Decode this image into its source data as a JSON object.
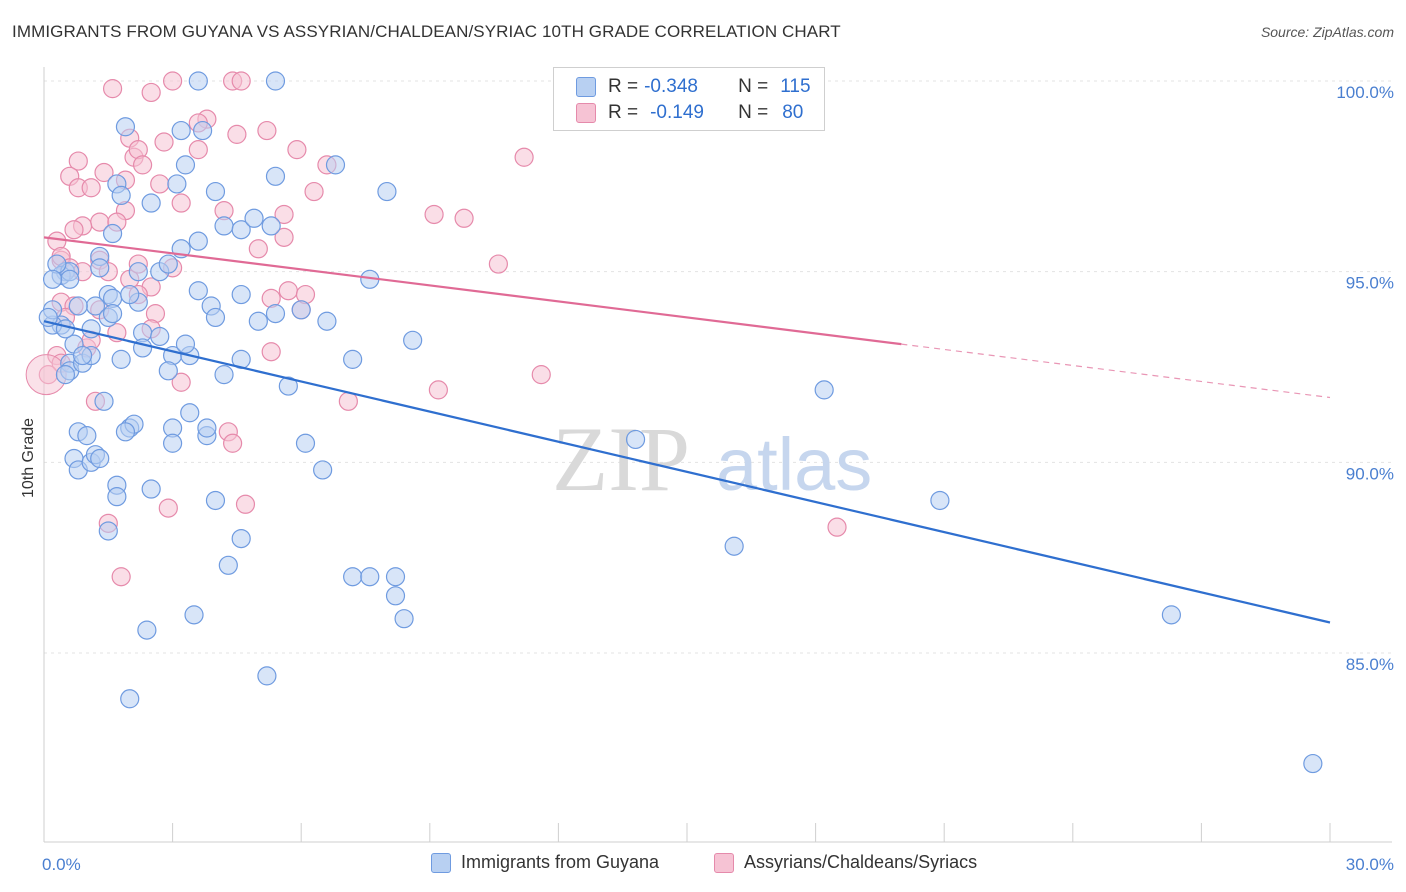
{
  "title": "IMMIGRANTS FROM GUYANA VS ASSYRIAN/CHALDEAN/SYRIAC 10TH GRADE CORRELATION CHART",
  "source": "Source: ZipAtlas.com",
  "watermark": {
    "zip": "ZIP",
    "atlas": "atlas"
  },
  "legend": {
    "rows": [
      {
        "r_label": "R =",
        "r_value": "-0.348",
        "n_label": "N =",
        "n_value": "115"
      },
      {
        "r_label": "R =",
        "r_value": "-0.149",
        "n_label": "N =",
        "n_value": "80"
      }
    ]
  },
  "colors": {
    "blue": "#2f6fcf",
    "blue_fill": "#b8d0f2",
    "pink": "#e06a95",
    "pink_fill": "#f6c3d4",
    "tick_text": "#4a7fd0",
    "grid": "#e3e3e3"
  },
  "chart_data": {
    "type": "scatter",
    "ylabel": "10th Grade",
    "xlim": [
      0,
      30
    ],
    "ylim": [
      80.0,
      101.0
    ],
    "x_tick_labels": [
      "0.0%",
      "30.0%"
    ],
    "y_ticks": [
      {
        "value": 100,
        "label": "100.0%"
      },
      {
        "value": 95,
        "label": "95.0%"
      },
      {
        "value": 90,
        "label": "90.0%"
      },
      {
        "value": 85,
        "label": "85.0%"
      }
    ],
    "grid": true,
    "series": [
      {
        "name": "Immigrants from Guyana",
        "color": "blue",
        "trend": {
          "x0": 0.0,
          "y0": 93.7,
          "x1": 30.0,
          "y1": 85.8
        },
        "points": [
          [
            3.6,
            100
          ],
          [
            5.4,
            100
          ],
          [
            1.9,
            98.8
          ],
          [
            3.2,
            98.7
          ],
          [
            3.7,
            98.7
          ],
          [
            3.3,
            97.8
          ],
          [
            5.4,
            97.5
          ],
          [
            6.8,
            97.8
          ],
          [
            0.5,
            95
          ],
          [
            0.4,
            94.9
          ],
          [
            0.4,
            93.6
          ],
          [
            0.2,
            93.6
          ],
          [
            0.2,
            94
          ],
          [
            0.1,
            93.8
          ],
          [
            0.6,
            95
          ],
          [
            0.6,
            94.8
          ],
          [
            1.3,
            95.4
          ],
          [
            1.3,
            95.1
          ],
          [
            1.5,
            94.4
          ],
          [
            1.6,
            94.3
          ],
          [
            2.2,
            94.2
          ],
          [
            2,
            94.4
          ],
          [
            2.2,
            95
          ],
          [
            2.7,
            95
          ],
          [
            2.9,
            95.2
          ],
          [
            3.2,
            95.6
          ],
          [
            3.6,
            95.8
          ],
          [
            4.2,
            96.2
          ],
          [
            4.6,
            96.1
          ],
          [
            4.9,
            96.4
          ],
          [
            5.3,
            96.2
          ],
          [
            1.6,
            96
          ],
          [
            1.7,
            97.3
          ],
          [
            1.8,
            97
          ],
          [
            2.5,
            96.8
          ],
          [
            3.1,
            97.3
          ],
          [
            4.0,
            97.1
          ],
          [
            8.0,
            97.1
          ],
          [
            1.2,
            94.1
          ],
          [
            1.5,
            93.8
          ],
          [
            2.3,
            93.4
          ],
          [
            2.3,
            93
          ],
          [
            3.0,
            92.8
          ],
          [
            3.4,
            92.8
          ],
          [
            3.6,
            94.5
          ],
          [
            3.9,
            94.1
          ],
          [
            4.6,
            94.4
          ],
          [
            4.0,
            93.8
          ],
          [
            5.0,
            93.7
          ],
          [
            5.4,
            93.9
          ],
          [
            6.0,
            94
          ],
          [
            6.6,
            93.7
          ],
          [
            7.6,
            94.8
          ],
          [
            8.6,
            93.2
          ],
          [
            0.6,
            92.6
          ],
          [
            0.6,
            92.4
          ],
          [
            0.9,
            92.6
          ],
          [
            1.1,
            93.5
          ],
          [
            1.1,
            92.8
          ],
          [
            1.8,
            92.7
          ],
          [
            0.5,
            92.3
          ],
          [
            2.9,
            92.4
          ],
          [
            4.2,
            92.3
          ],
          [
            4.6,
            92.7
          ],
          [
            5.7,
            92
          ],
          [
            7.2,
            92.7
          ],
          [
            18.2,
            91.9
          ],
          [
            1.4,
            91.6
          ],
          [
            2.0,
            90.9
          ],
          [
            2.1,
            91
          ],
          [
            3.0,
            90.9
          ],
          [
            3.4,
            91.3
          ],
          [
            3.8,
            90.7
          ],
          [
            3.8,
            90.9
          ],
          [
            0.8,
            90.8
          ],
          [
            1.0,
            90.7
          ],
          [
            0.7,
            90.1
          ],
          [
            0.8,
            89.8
          ],
          [
            1.1,
            90
          ],
          [
            1.2,
            90.2
          ],
          [
            1.3,
            90.1
          ],
          [
            3.0,
            90.5
          ],
          [
            6.1,
            90.5
          ],
          [
            6.5,
            89.8
          ],
          [
            13.8,
            90.6
          ],
          [
            1.7,
            89.4
          ],
          [
            1.7,
            89.1
          ],
          [
            2.5,
            89.3
          ],
          [
            4.0,
            89
          ],
          [
            4.6,
            88
          ],
          [
            4.3,
            87.3
          ],
          [
            1.5,
            88.2
          ],
          [
            16.1,
            87.8
          ],
          [
            20.9,
            89
          ],
          [
            7.2,
            87
          ],
          [
            7.6,
            87
          ],
          [
            8.2,
            87
          ],
          [
            8.2,
            86.5
          ],
          [
            8.4,
            85.9
          ],
          [
            3.5,
            86
          ],
          [
            2.4,
            85.6
          ],
          [
            5.2,
            84.4
          ],
          [
            2.0,
            83.8
          ],
          [
            0.3,
            95.2
          ],
          [
            0.7,
            93.1
          ],
          [
            0.9,
            92.8
          ],
          [
            0.5,
            93.5
          ],
          [
            0.8,
            94.1
          ],
          [
            1.6,
            93.9
          ],
          [
            2.7,
            93.3
          ],
          [
            3.3,
            93.1
          ],
          [
            1.9,
            90.8
          ],
          [
            26.3,
            86
          ],
          [
            29.6,
            82.1
          ],
          [
            0.2,
            94.8
          ]
        ]
      },
      {
        "name": "Assyrians/Chaldeans/Syriacs",
        "color": "pink",
        "trend": {
          "x0": 0.0,
          "y0": 95.9,
          "x1": 20.0,
          "y1": 93.1
        },
        "trend_dashed": {
          "x0": 20.0,
          "y0": 93.1,
          "x1": 30.0,
          "y1": 91.7
        },
        "points": [
          [
            3.0,
            100
          ],
          [
            4.4,
            100
          ],
          [
            4.6,
            100
          ],
          [
            1.6,
            99.8
          ],
          [
            2.5,
            99.7
          ],
          [
            2.0,
            98.5
          ],
          [
            2.8,
            98.4
          ],
          [
            3.8,
            99
          ],
          [
            3.6,
            98.9
          ],
          [
            4.5,
            98.6
          ],
          [
            5.2,
            98.7
          ],
          [
            2.1,
            98
          ],
          [
            2.2,
            98.2
          ],
          [
            3.6,
            98.2
          ],
          [
            5.9,
            98.2
          ],
          [
            6.6,
            97.8
          ],
          [
            11.2,
            98
          ],
          [
            0.8,
            97.9
          ],
          [
            0.6,
            97.5
          ],
          [
            0.8,
            97.2
          ],
          [
            1.4,
            97.6
          ],
          [
            1.1,
            97.2
          ],
          [
            1.9,
            97.4
          ],
          [
            2.3,
            97.8
          ],
          [
            2.7,
            97.3
          ],
          [
            6.3,
            97.1
          ],
          [
            4.2,
            96.6
          ],
          [
            3.2,
            96.8
          ],
          [
            1.9,
            96.6
          ],
          [
            1.3,
            96.3
          ],
          [
            0.9,
            96.2
          ],
          [
            1.7,
            96.3
          ],
          [
            5.6,
            96.5
          ],
          [
            9.1,
            96.5
          ],
          [
            9.8,
            96.4
          ],
          [
            0.3,
            95.8
          ],
          [
            0.4,
            95.3
          ],
          [
            0.4,
            95.4
          ],
          [
            0.6,
            95.1
          ],
          [
            0.9,
            95
          ],
          [
            1.3,
            95.3
          ],
          [
            2.0,
            94.8
          ],
          [
            2.5,
            94.6
          ],
          [
            3.0,
            95.1
          ],
          [
            5.0,
            95.6
          ],
          [
            5.6,
            95.9
          ],
          [
            10.6,
            95.2
          ],
          [
            0.4,
            94.2
          ],
          [
            0.7,
            94.1
          ],
          [
            1.3,
            94
          ],
          [
            2.2,
            94.4
          ],
          [
            2.6,
            93.9
          ],
          [
            5.3,
            94.3
          ],
          [
            5.7,
            94.5
          ],
          [
            6.0,
            94
          ],
          [
            6.1,
            94.4
          ],
          [
            0.3,
            92.8
          ],
          [
            1.0,
            93
          ],
          [
            1.1,
            93.2
          ],
          [
            1.7,
            93.4
          ],
          [
            2.5,
            93.5
          ],
          [
            5.3,
            92.9
          ],
          [
            0.4,
            92.6
          ],
          [
            3.2,
            92.1
          ],
          [
            9.2,
            91.9
          ],
          [
            11.6,
            92.3
          ],
          [
            7.1,
            91.6
          ],
          [
            1.2,
            91.6
          ],
          [
            4.3,
            90.8
          ],
          [
            4.4,
            90.5
          ],
          [
            2.9,
            88.8
          ],
          [
            4.7,
            88.9
          ],
          [
            1.5,
            88.4
          ],
          [
            18.5,
            88.3
          ],
          [
            1.8,
            87
          ],
          [
            0.1,
            92.3
          ],
          [
            0.5,
            93.8
          ],
          [
            2.2,
            95.2
          ],
          [
            0.7,
            96.1
          ],
          [
            1.5,
            95.0
          ]
        ]
      }
    ]
  },
  "bottom_legend": [
    "Immigrants from Guyana",
    "Assyrians/Chaldeans/Syriacs"
  ]
}
